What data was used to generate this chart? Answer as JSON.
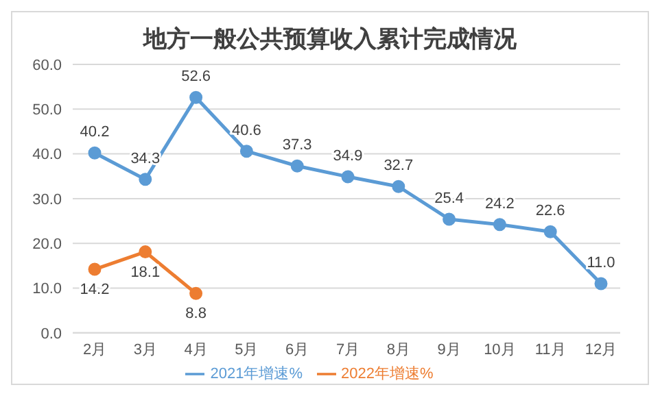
{
  "chart_data": {
    "type": "line",
    "title": "地方一般公共预算收入累计完成情况",
    "categories": [
      "2月",
      "3月",
      "4月",
      "5月",
      "6月",
      "7月",
      "8月",
      "9月",
      "10月",
      "11月",
      "12月"
    ],
    "series": [
      {
        "name": "2021年增速%",
        "color": "#5b9bd5",
        "values": [
          40.2,
          34.3,
          52.6,
          40.6,
          37.3,
          34.9,
          32.7,
          25.4,
          24.2,
          22.6,
          11.0
        ],
        "value_labels": [
          "40.2",
          "34.3",
          "52.6",
          "40.6",
          "37.3",
          "34.9",
          "32.7",
          "25.4",
          "24.2",
          "22.6",
          "11.0"
        ]
      },
      {
        "name": "2022年增速%",
        "color": "#ed7d31",
        "values": [
          14.2,
          18.1,
          8.8,
          null,
          null,
          null,
          null,
          null,
          null,
          null,
          null
        ],
        "value_labels": [
          "14.2",
          "18.1",
          "8.8",
          null,
          null,
          null,
          null,
          null,
          null,
          null,
          null
        ]
      }
    ],
    "ylim": [
      0,
      60
    ],
    "yticks": [
      {
        "value": 0,
        "label": "0.0"
      },
      {
        "value": 10,
        "label": "10.0"
      },
      {
        "value": 20,
        "label": "20.0"
      },
      {
        "value": 30,
        "label": "30.0"
      },
      {
        "value": 40,
        "label": "40.0"
      },
      {
        "value": 50,
        "label": "50.0"
      },
      {
        "value": 60,
        "label": "60.0"
      }
    ],
    "grid": "y",
    "legend": "bottom",
    "marker": "circle",
    "line_style": "solid"
  }
}
